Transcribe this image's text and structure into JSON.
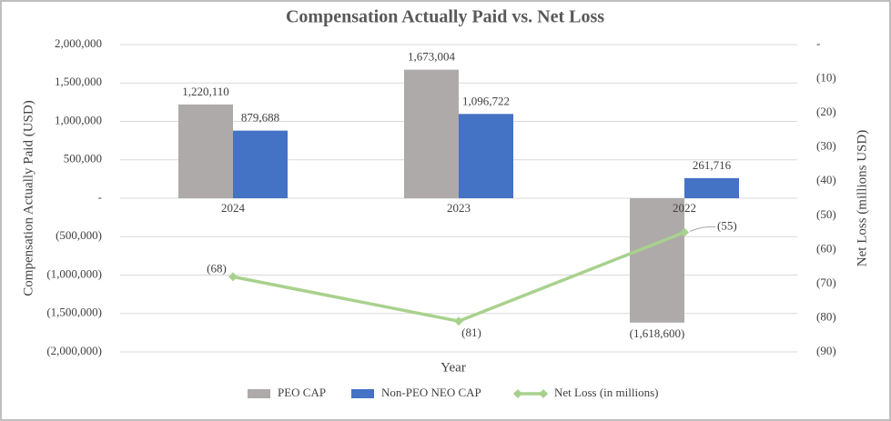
{
  "chart_data": {
    "type": "bar",
    "title": "Compensation Actually Paid vs. Net Loss",
    "x_label": "Year",
    "y_label": "Compensation Actually Paid (USD)",
    "y2_label": "Net Loss (millions USD)",
    "categories": [
      "2024",
      "2023",
      "2022"
    ],
    "series": [
      {
        "name": "PEO CAP",
        "color": "#aeaaaa",
        "values": [
          1220110,
          1673004,
          -1618600
        ],
        "value_labels": [
          "1,220,110",
          "1,673,004",
          "(1,618,600)"
        ]
      },
      {
        "name": "Non-PEO NEO CAP",
        "color": "#4472c4",
        "values": [
          879688,
          1096722,
          261716
        ],
        "value_labels": [
          "879,688",
          "1,096,722",
          "261,716"
        ]
      },
      {
        "name": "Net Loss (in millions)",
        "color": "#a9d18e",
        "type": "line",
        "axis": "y2",
        "values": [
          -68,
          -81,
          -55
        ],
        "value_labels": [
          "(68)",
          "(81)",
          "(55)"
        ]
      }
    ],
    "ylim": [
      -2000000,
      2000000
    ],
    "yticks": [
      {
        "value": 2000000,
        "label": "2,000,000"
      },
      {
        "value": 1500000,
        "label": "1,500,000"
      },
      {
        "value": 1000000,
        "label": "1,000,000"
      },
      {
        "value": 500000,
        "label": "500,000"
      },
      {
        "value": 0,
        "label": "-"
      },
      {
        "value": -500000,
        "label": "(500,000)"
      },
      {
        "value": -1000000,
        "label": "(1,000,000)"
      },
      {
        "value": -1500000,
        "label": "(1,500,000)"
      },
      {
        "value": -2000000,
        "label": "(2,000,000)"
      }
    ],
    "y2lim": [
      -90,
      0
    ],
    "y2ticks": [
      {
        "value": 0,
        "label": "-"
      },
      {
        "value": -10,
        "label": "(10)"
      },
      {
        "value": -20,
        "label": "(20)"
      },
      {
        "value": -30,
        "label": "(30)"
      },
      {
        "value": -40,
        "label": "(40)"
      },
      {
        "value": -50,
        "label": "(50)"
      },
      {
        "value": -60,
        "label": "(60)"
      },
      {
        "value": -70,
        "label": "(70)"
      },
      {
        "value": -80,
        "label": "(80)"
      },
      {
        "value": -90,
        "label": "(90)"
      }
    ],
    "grid": true
  }
}
